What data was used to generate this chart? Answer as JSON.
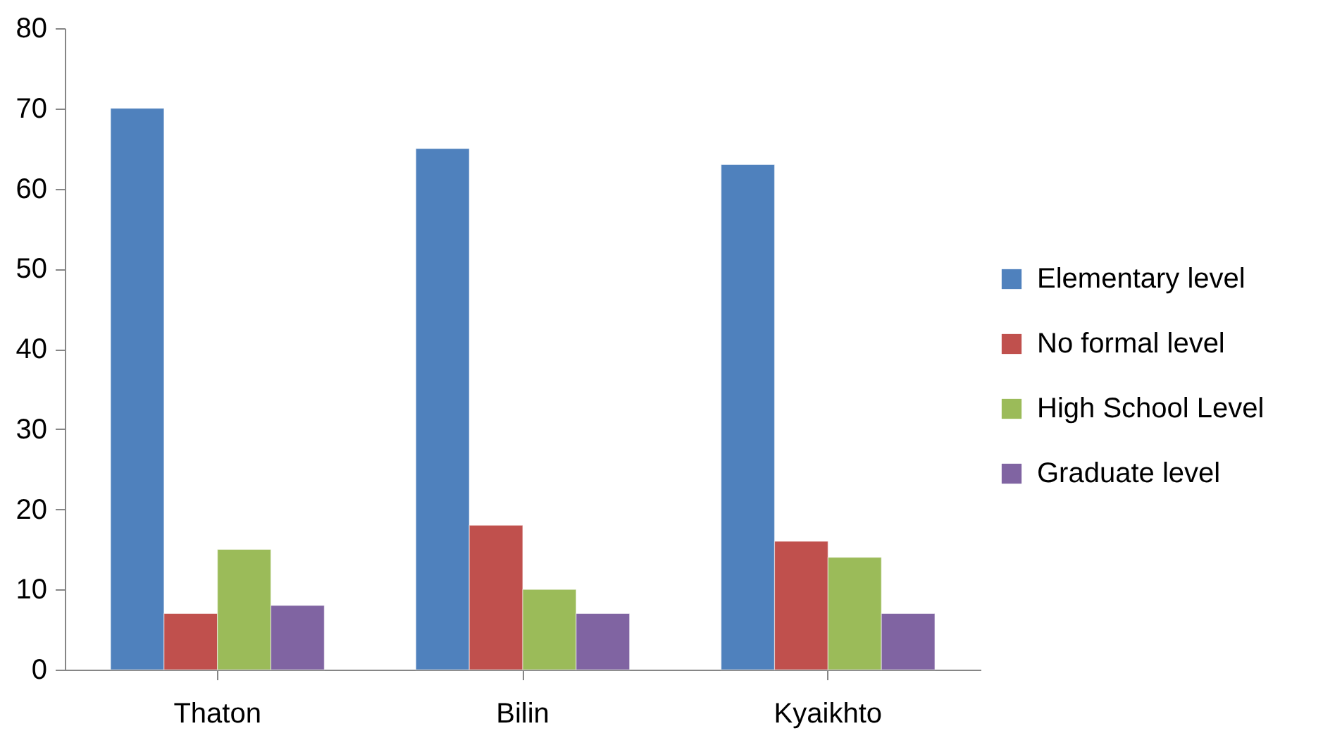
{
  "chart_data": {
    "type": "bar",
    "categories": [
      "Thaton",
      "Bilin",
      "Kyaikhto"
    ],
    "series": [
      {
        "name": "Elementary level",
        "color": "#4f81bd",
        "values": [
          70,
          65,
          63
        ]
      },
      {
        "name": "No formal level",
        "color": "#c0504d",
        "values": [
          7,
          18,
          16
        ]
      },
      {
        "name": "High School Level",
        "color": "#9bbb59",
        "values": [
          15,
          10,
          14
        ]
      },
      {
        "name": "Graduate level",
        "color": "#8064a2",
        "values": [
          8,
          7,
          7
        ]
      }
    ],
    "ylim": [
      0,
      80
    ],
    "yticks": [
      0,
      10,
      20,
      30,
      40,
      50,
      60,
      70,
      80
    ],
    "legend": "right"
  }
}
